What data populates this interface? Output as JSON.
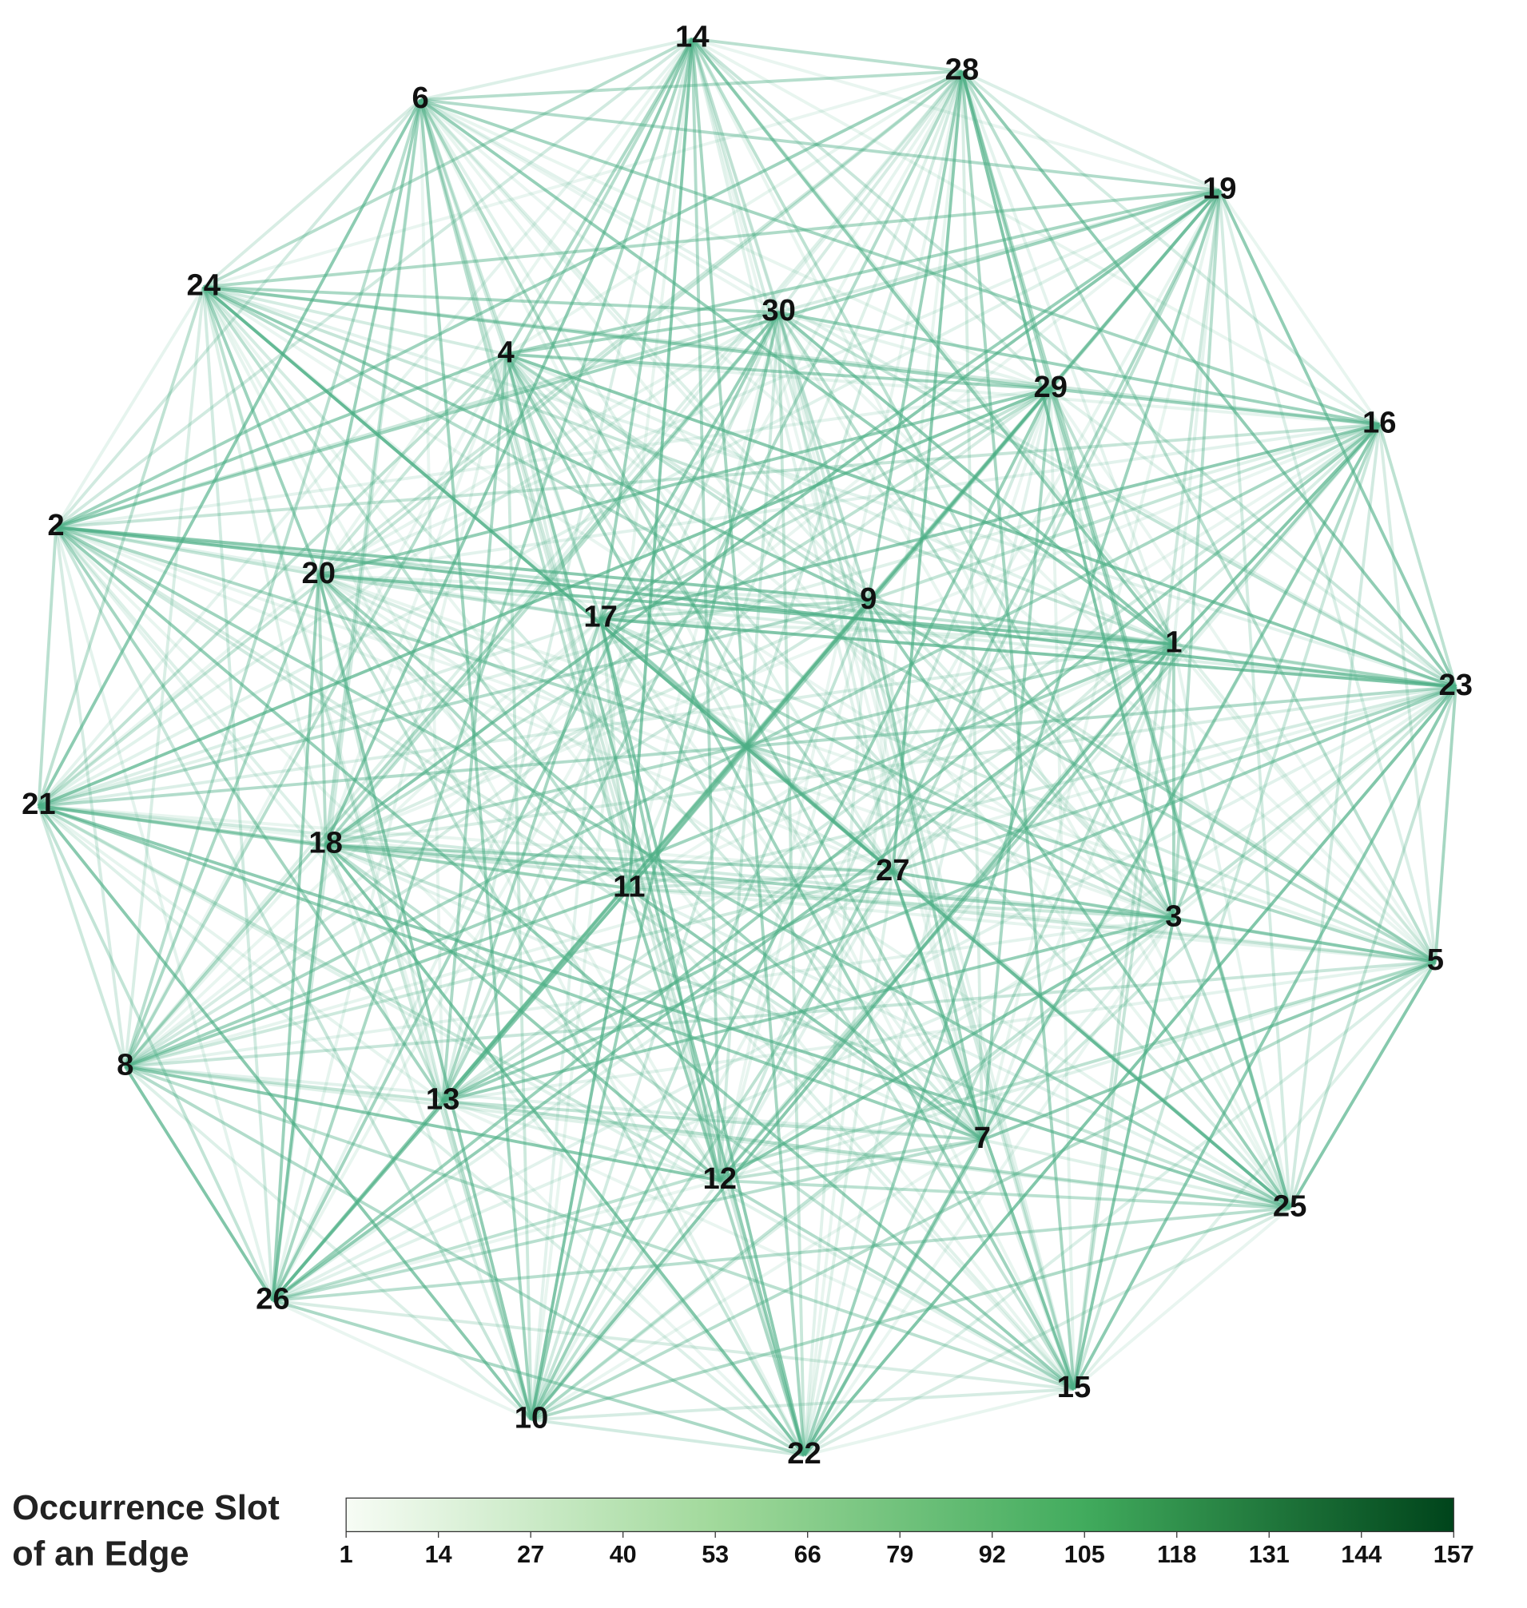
{
  "nodes": [
    {
      "label": "14"
    },
    {
      "label": "28"
    },
    {
      "label": "6"
    },
    {
      "label": "19"
    },
    {
      "label": "24"
    },
    {
      "label": "30"
    },
    {
      "label": "4"
    },
    {
      "label": "29"
    },
    {
      "label": "16"
    },
    {
      "label": "2"
    },
    {
      "label": "20"
    },
    {
      "label": "17"
    },
    {
      "label": "9"
    },
    {
      "label": "1"
    },
    {
      "label": "23"
    },
    {
      "label": "21"
    },
    {
      "label": "18"
    },
    {
      "label": "27"
    },
    {
      "label": "11"
    },
    {
      "label": "3"
    },
    {
      "label": "5"
    },
    {
      "label": "8"
    },
    {
      "label": "13"
    },
    {
      "label": "7"
    },
    {
      "label": "12"
    },
    {
      "label": "25"
    },
    {
      "label": "26"
    },
    {
      "label": "15"
    },
    {
      "label": "10"
    },
    {
      "label": "22"
    }
  ],
  "edge_color": "#4daf86",
  "colorbar": {
    "title": [
      "Occurrence Slot",
      "of an Edge"
    ],
    "lim": [
      1,
      157
    ],
    "ticks": [
      1,
      14,
      27,
      40,
      53,
      66,
      79,
      92,
      105,
      118,
      131,
      144,
      157
    ],
    "colors": [
      "#f7fcf5",
      "#a1d99b",
      "#41ab5d",
      "#00441b"
    ]
  }
}
